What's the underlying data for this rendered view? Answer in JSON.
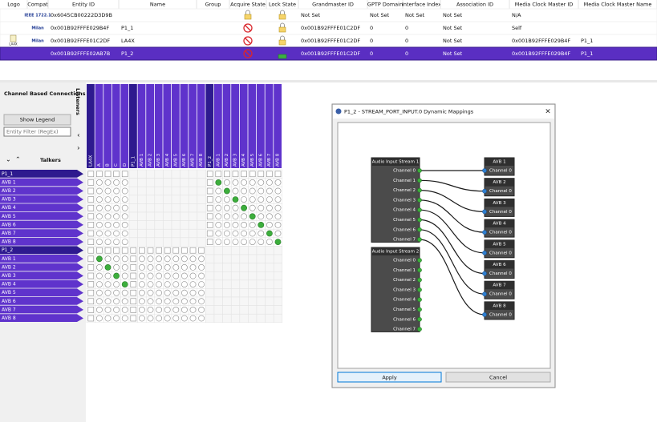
{
  "table": {
    "headers": [
      "Logo",
      "Compat",
      "Entity ID",
      "Name",
      "Group",
      "Acquire State",
      "Lock State",
      "Grandmaster ID",
      "GPTP Domain",
      "Interface Index",
      "Association ID",
      "Media Clock Master ID",
      "Media Clock Master Name"
    ],
    "rows": [
      {
        "compat": "IEEE 1722.1",
        "entity_id": "0x6045CB00222D3D9B",
        "grandmaster_id": "Not Set",
        "gptp_domain": "Not Set",
        "interface_index": "Not Set",
        "association_id": "Not Set",
        "media_clock_master_id": "N/A"
      },
      {
        "compat": "Milan",
        "entity_id": "0x001B92FFFE029B4F",
        "name": "P1_1",
        "grandmaster_id": "0x001B92FFFE01C2DF",
        "gptp_domain": 0,
        "interface_index": 0,
        "association_id": "Not Set",
        "media_clock_master_id": "Self"
      },
      {
        "logo": "LA4X",
        "compat": "Milan",
        "entity_id": "0x001B92FFFE01C2DF",
        "name": "LA4X",
        "grandmaster_id": "0x001B92FFFE01C2DF",
        "gptp_domain": 0,
        "interface_index": 0,
        "association_id": "Not Set",
        "media_clock_master_id": "0x001B92FFFE029B4F",
        "media_clock_master_name": "P1_1"
      },
      {
        "entity_id": "0x001B92FFFE02AB7B",
        "name": "P1_2",
        "grandmaster_id": "0x001B92FFFE01C2DF",
        "gptp_domain": 0,
        "interface_index": 0,
        "association_id": "Not Set",
        "media_clock_master_id": "0x001B92FFFE029B4F",
        "media_clock_master_name": "P1_1"
      }
    ]
  },
  "panel": {
    "title": "Channel Based Connections",
    "show_legend": "Show Legend",
    "filter_placeholder": "Entity Filter (RegEx)",
    "talkers_label": "Talkers",
    "listeners_label": "Listeners"
  },
  "matrix": {
    "listeners": [
      {
        "entity": "LA4X",
        "channels": [
          "A",
          "B",
          "C",
          "D"
        ]
      },
      {
        "entity": "P1_1",
        "channels": [
          "AVB 1",
          "AVB 2",
          "AVB 3",
          "AVB 4",
          "AVB 5",
          "AVB 6",
          "AVB 7",
          "AVB 8"
        ]
      },
      {
        "entity": "P1_2",
        "channels": [
          "AVB 1",
          "AVB 2",
          "AVB 3",
          "AVB 4",
          "AVB 5",
          "AVB 6",
          "AVB 7",
          "AVB 8"
        ]
      }
    ],
    "talkers": [
      {
        "entity": "P1_1",
        "channels": [
          "AVB 1",
          "AVB 2",
          "AVB 3",
          "AVB 4",
          "AVB 5",
          "AVB 6",
          "AVB 7",
          "AVB 8"
        ]
      },
      {
        "entity": "P1_2",
        "channels": [
          "AVB 1",
          "AVB 2",
          "AVB 3",
          "AVB 4",
          "AVB 5",
          "AVB 6",
          "AVB 7",
          "AVB 8"
        ]
      }
    ]
  },
  "dialog": {
    "title": "P1_2 - STREAM_PORT_INPUT.0 Dynamic Mappings",
    "inputs": [
      {
        "name": "Audio Input Stream 1",
        "channels": [
          "Channel 0",
          "Channel 1",
          "Channel 2",
          "Channel 3",
          "Channel 4",
          "Channel 5",
          "Channel 6",
          "Channel 7"
        ]
      },
      {
        "name": "Audio Input Stream 2",
        "channels": [
          "Channel 0",
          "Channel 1",
          "Channel 2",
          "Channel 3",
          "Channel 4",
          "Channel 5",
          "Channel 6",
          "Channel 7"
        ]
      }
    ],
    "outputs": [
      {
        "name": "AVB 1",
        "channel": "Channel 0"
      },
      {
        "name": "AVB 2",
        "channel": "Channel 0"
      },
      {
        "name": "AVB 3",
        "channel": "Channel 0"
      },
      {
        "name": "AVB 4",
        "channel": "Channel 0"
      },
      {
        "name": "AVB 5",
        "channel": "Channel 0"
      },
      {
        "name": "AVB 6",
        "channel": "Channel 0"
      },
      {
        "name": "AVB 7",
        "channel": "Channel 0"
      },
      {
        "name": "AVB 8",
        "channel": "Channel 0"
      }
    ],
    "apply": "Apply",
    "cancel": "Cancel"
  }
}
